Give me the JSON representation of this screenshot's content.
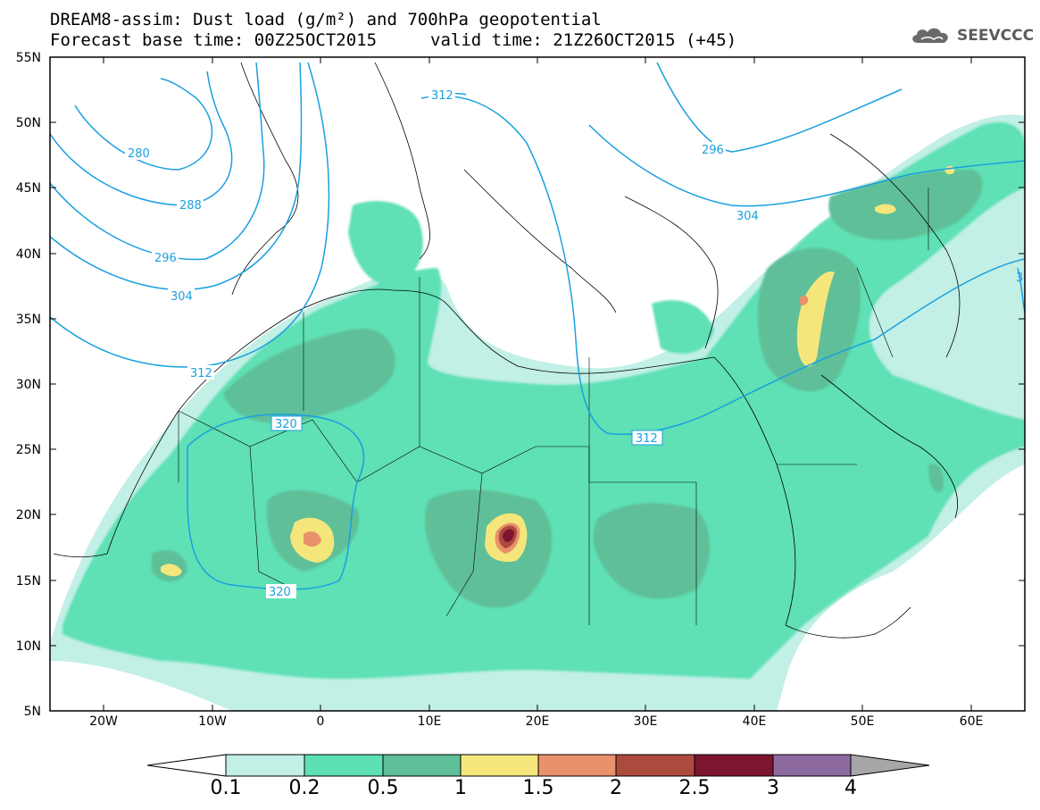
{
  "header": {
    "title_line1": "DREAM8-assim: Dust load (g/m²) and 700hPa geopotential",
    "base_time": "Forecast base time: 00Z25OCT2015",
    "valid_time": "valid time: 21Z26OCT2015 (+45)"
  },
  "logo": {
    "text": "SEEVCCC",
    "icon": "cloud-icon"
  },
  "map": {
    "projection": "lat-lon",
    "lon_range": [
      -25,
      65
    ],
    "lat_range": [
      5,
      55
    ],
    "lat_labels": [
      "55N",
      "50N",
      "45N",
      "40N",
      "35N",
      "30N",
      "25N",
      "20N",
      "15N",
      "10N",
      "5N"
    ],
    "lon_labels": [
      "20W",
      "10W",
      "0",
      "10E",
      "20E",
      "30E",
      "40E",
      "50E",
      "60E"
    ],
    "field": "Dust load (g/m²)",
    "contour_field": "700hPa geopotential",
    "contour_labels": [
      "280",
      "288",
      "296",
      "304",
      "312",
      "312",
      "312",
      "320",
      "320",
      "296",
      "304",
      "3"
    ]
  },
  "colorbar": {
    "levels": [
      "0.1",
      "0.2",
      "0.5",
      "1",
      "1.5",
      "2",
      "2.5",
      "3",
      "4"
    ],
    "colors": [
      "#c2efe6",
      "#5ee0b5",
      "#5fbf98",
      "#f5e67c",
      "#e8916a",
      "#ad4a3e",
      "#7d1531",
      "#8c6aa0"
    ],
    "over_color": "#a7a7a7",
    "under_color": "#ffffff"
  }
}
